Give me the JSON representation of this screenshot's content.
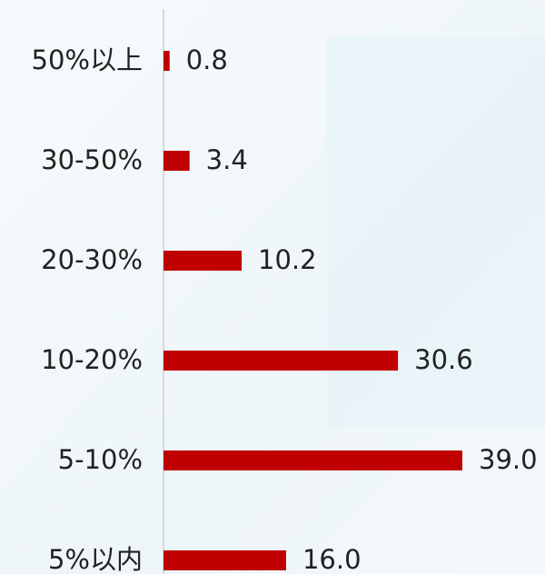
{
  "chart_data": {
    "type": "bar",
    "orientation": "horizontal",
    "categories": [
      "50%以上",
      "30-50%",
      "20-30%",
      "10-20%",
      "5-10%",
      "5%以内"
    ],
    "values": [
      0.8,
      3.4,
      10.2,
      30.6,
      39,
      16
    ],
    "value_labels": [
      "0.8",
      "3.4",
      "10.2",
      "30.6",
      "39.0",
      "16.0"
    ],
    "color": "#c00000"
  }
}
